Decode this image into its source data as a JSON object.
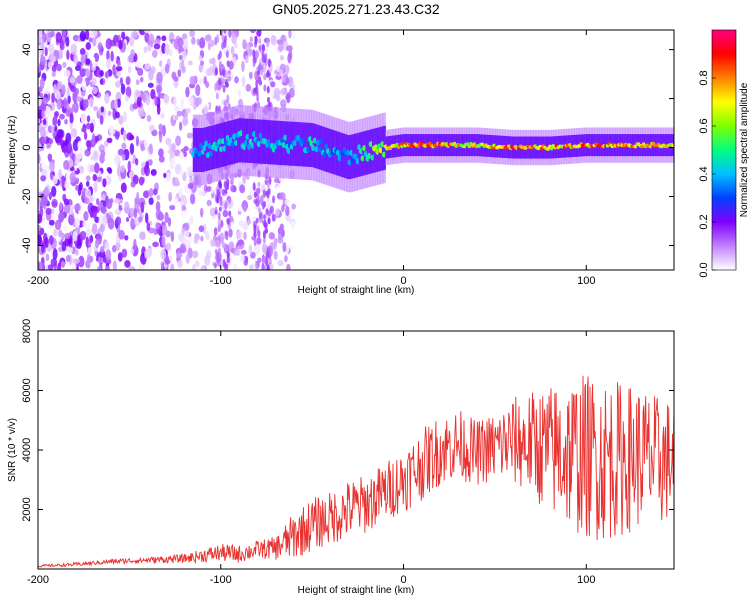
{
  "title": "GN05.2025.271.23.43.C32",
  "chart_data": [
    {
      "type": "heatmap",
      "xlabel": "Height of straight line (km)",
      "ylabel": "Frequency (Hz)",
      "xlim": [
        -200,
        148
      ],
      "ylim": [
        -50,
        48
      ],
      "xticks": [
        -200,
        -100,
        0,
        100
      ],
      "yticks": [
        -40,
        -20,
        0,
        20,
        40
      ],
      "colorbar": {
        "label": "Normalized spectral amplitude",
        "range": [
          0,
          1
        ],
        "ticks": [
          0.0,
          0.2,
          0.4,
          0.6,
          0.8
        ],
        "tick_labels": [
          "0.0",
          "0.2",
          "0.4",
          "0.6",
          "0.8"
        ],
        "colors": [
          "#ffffff",
          "#c080ff",
          "#8000ff",
          "#0040ff",
          "#00c0ff",
          "#00ff80",
          "#80ff00",
          "#ffff00",
          "#ff8000",
          "#ff0000",
          "#ff0080"
        ]
      },
      "ridge": {
        "description_points_x": [
          -110,
          -90,
          -70,
          -50,
          -30,
          -10,
          0,
          20,
          40,
          60,
          80,
          100,
          120,
          148
        ],
        "frequency_center": [
          -1,
          3,
          2,
          1,
          -4,
          0,
          1,
          1,
          1,
          0,
          0,
          1,
          1,
          1
        ],
        "peak_amplitude": [
          0.45,
          0.5,
          0.45,
          0.5,
          0.4,
          0.8,
          0.9,
          0.95,
          0.8,
          0.95,
          0.9,
          0.95,
          0.9,
          0.85
        ]
      }
    },
    {
      "type": "line",
      "xlabel": "Height of straight line (km)",
      "ylabel": "SNR (10 * v/v)",
      "xlim": [
        -200,
        148
      ],
      "ylim": [
        0,
        8000
      ],
      "xticks": [
        -200,
        -100,
        0,
        100
      ],
      "yticks": [
        2000,
        4000,
        6000,
        8000
      ],
      "series": [
        {
          "name": "SNR",
          "color": "#e8312e",
          "x": [
            -200,
            -180,
            -160,
            -140,
            -120,
            -100,
            -90,
            -80,
            -70,
            -60,
            -50,
            -40,
            -30,
            -20,
            -10,
            0,
            10,
            20,
            30,
            40,
            50,
            60,
            70,
            80,
            90,
            100,
            110,
            120,
            130,
            140,
            148
          ],
          "y": [
            100,
            150,
            250,
            300,
            350,
            550,
            500,
            650,
            700,
            1100,
            1500,
            1700,
            2000,
            2200,
            2600,
            3000,
            3500,
            4000,
            4200,
            3900,
            4100,
            4300,
            4200,
            4000,
            3900,
            3800,
            3700,
            3700,
            3800,
            3600,
            3700
          ],
          "amplitude_envelope": [
            40,
            60,
            80,
            100,
            150,
            300,
            300,
            300,
            400,
            800,
            900,
            900,
            1000,
            1000,
            1000,
            1100,
            1200,
            1200,
            1200,
            1100,
            1200,
            1500,
            1800,
            2200,
            2600,
            2800,
            2800,
            2600,
            2400,
            2200,
            2000
          ]
        }
      ]
    }
  ]
}
